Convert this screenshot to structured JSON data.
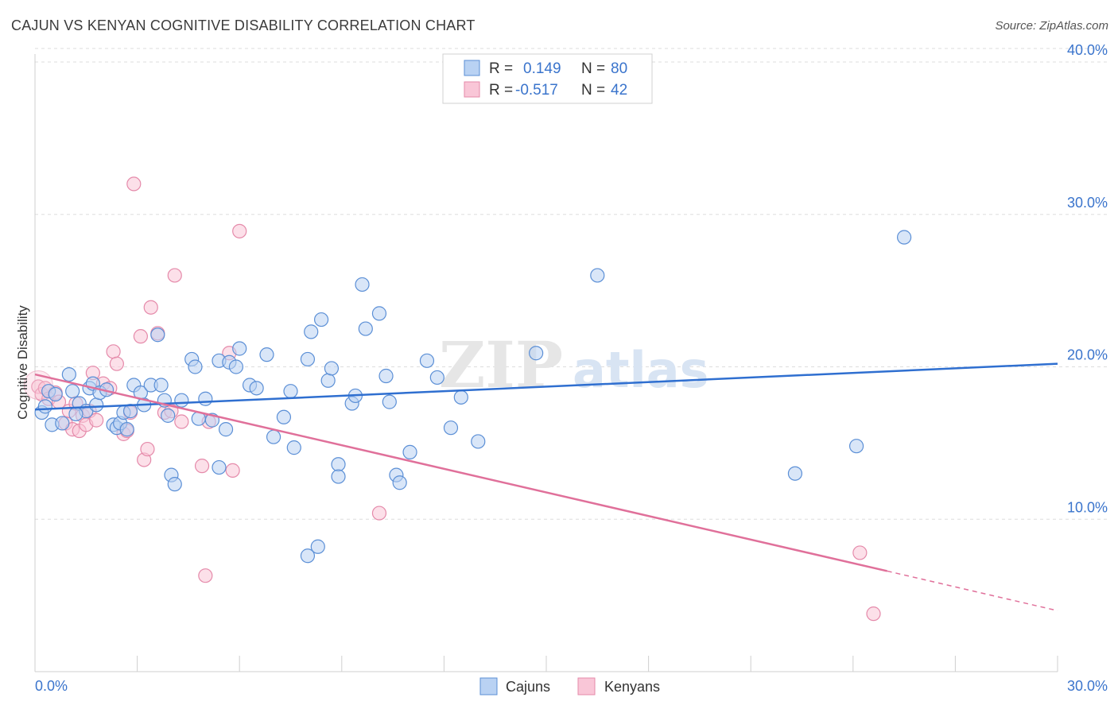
{
  "title": "CAJUN VS KENYAN COGNITIVE DISABILITY CORRELATION CHART",
  "source": "Source: ZipAtlas.com",
  "watermark": {
    "zip": "ZIP",
    "atlas": "atlas"
  },
  "colors": {
    "cajun_fill": "#b9d2f3",
    "cajun_stroke": "#5b8fd6",
    "cajun_line": "#2f6fd0",
    "kenyan_fill": "#f9c6d7",
    "kenyan_stroke": "#e58aaa",
    "kenyan_line": "#e0709a",
    "value_blue": "#3a74cc",
    "grid": "#dddddd"
  },
  "legend": {
    "rows": [
      {
        "r_label": "R =",
        "r_value": "0.149",
        "n_label": "N =",
        "n_value": "80"
      },
      {
        "r_label": "R =",
        "r_value": "-0.517",
        "n_label": "N =",
        "n_value": "42"
      }
    ]
  },
  "bottom_legend": {
    "cajuns": "Cajuns",
    "kenyans": "Kenyans"
  },
  "chart_data": {
    "type": "scatter",
    "title": "CAJUN VS KENYAN COGNITIVE DISABILITY CORRELATION CHART",
    "xlabel": "",
    "ylabel": "Cognitive Disability",
    "xlim": [
      0,
      30
    ],
    "ylim": [
      0,
      40
    ],
    "x_tick_labels": [
      "0.0%",
      "30.0%"
    ],
    "y_tick_labels": [
      "10.0%",
      "20.0%",
      "30.0%",
      "40.0%"
    ],
    "y_ticks": [
      10,
      20,
      30,
      40
    ],
    "series": [
      {
        "name": "Cajuns",
        "r": 0.149,
        "n": 80,
        "trend": {
          "x": [
            0,
            30
          ],
          "y": [
            17.2,
            20.2
          ]
        },
        "points": [
          [
            0.2,
            17.0
          ],
          [
            0.3,
            17.4
          ],
          [
            0.4,
            18.4
          ],
          [
            0.5,
            16.2
          ],
          [
            0.8,
            16.3
          ],
          [
            1.0,
            19.5
          ],
          [
            1.1,
            18.4
          ],
          [
            1.3,
            17.6
          ],
          [
            1.5,
            17.1
          ],
          [
            1.6,
            18.6
          ],
          [
            1.7,
            18.9
          ],
          [
            1.8,
            17.5
          ],
          [
            1.9,
            18.3
          ],
          [
            2.1,
            18.5
          ],
          [
            2.3,
            16.2
          ],
          [
            2.4,
            16.0
          ],
          [
            2.5,
            16.3
          ],
          [
            2.6,
            17.0
          ],
          [
            2.8,
            17.1
          ],
          [
            2.9,
            18.8
          ],
          [
            3.1,
            18.3
          ],
          [
            3.2,
            17.5
          ],
          [
            3.4,
            18.8
          ],
          [
            3.6,
            22.1
          ],
          [
            3.7,
            18.8
          ],
          [
            3.8,
            17.8
          ],
          [
            3.9,
            16.8
          ],
          [
            4.0,
            12.9
          ],
          [
            4.1,
            12.3
          ],
          [
            4.3,
            17.8
          ],
          [
            4.6,
            20.5
          ],
          [
            4.7,
            20.0
          ],
          [
            4.8,
            16.6
          ],
          [
            5.0,
            17.9
          ],
          [
            5.2,
            16.5
          ],
          [
            5.4,
            20.4
          ],
          [
            5.4,
            13.4
          ],
          [
            5.6,
            15.9
          ],
          [
            5.7,
            20.3
          ],
          [
            5.9,
            20.0
          ],
          [
            6.0,
            21.2
          ],
          [
            6.3,
            18.8
          ],
          [
            6.8,
            20.8
          ],
          [
            7.0,
            15.4
          ],
          [
            7.3,
            16.7
          ],
          [
            7.5,
            18.4
          ],
          [
            7.6,
            14.7
          ],
          [
            8.0,
            7.6
          ],
          [
            8.0,
            20.5
          ],
          [
            8.1,
            22.3
          ],
          [
            8.3,
            8.2
          ],
          [
            8.4,
            23.1
          ],
          [
            8.6,
            19.1
          ],
          [
            8.7,
            19.9
          ],
          [
            8.9,
            13.6
          ],
          [
            8.9,
            12.8
          ],
          [
            9.3,
            17.6
          ],
          [
            9.4,
            18.1
          ],
          [
            9.6,
            25.4
          ],
          [
            9.7,
            22.5
          ],
          [
            10.1,
            23.5
          ],
          [
            10.3,
            19.4
          ],
          [
            10.6,
            12.9
          ],
          [
            10.7,
            12.4
          ],
          [
            11.0,
            14.4
          ],
          [
            11.5,
            20.4
          ],
          [
            11.8,
            19.3
          ],
          [
            12.2,
            16.0
          ],
          [
            12.5,
            18.0
          ],
          [
            13.0,
            15.1
          ],
          [
            14.7,
            20.9
          ],
          [
            16.5,
            26.0
          ],
          [
            22.3,
            13.0
          ],
          [
            24.1,
            14.8
          ],
          [
            25.5,
            28.5
          ],
          [
            0.6,
            18.2
          ],
          [
            1.2,
            16.9
          ],
          [
            2.7,
            15.9
          ],
          [
            6.5,
            18.6
          ],
          [
            10.4,
            17.7
          ]
        ]
      },
      {
        "name": "Kenyans",
        "r": -0.517,
        "n": 42,
        "trend": {
          "x": [
            0,
            25
          ],
          "y": [
            19.5,
            6.6
          ]
        },
        "trend_dashed": {
          "x": [
            25,
            30
          ],
          "y": [
            6.6,
            4.0
          ]
        },
        "points": [
          [
            0.1,
            18.7
          ],
          [
            0.2,
            18.2
          ],
          [
            0.3,
            18.6
          ],
          [
            0.4,
            17.9
          ],
          [
            0.6,
            18.3
          ],
          [
            0.7,
            17.7
          ],
          [
            0.9,
            16.3
          ],
          [
            1.0,
            17.1
          ],
          [
            1.1,
            15.9
          ],
          [
            1.3,
            15.8
          ],
          [
            1.4,
            16.8
          ],
          [
            1.5,
            16.2
          ],
          [
            1.6,
            17.1
          ],
          [
            1.7,
            19.6
          ],
          [
            1.8,
            16.5
          ],
          [
            2.0,
            18.9
          ],
          [
            2.2,
            18.6
          ],
          [
            2.3,
            21.0
          ],
          [
            2.4,
            20.2
          ],
          [
            2.6,
            15.6
          ],
          [
            2.7,
            15.8
          ],
          [
            2.8,
            17.0
          ],
          [
            2.9,
            32.0
          ],
          [
            3.1,
            22.0
          ],
          [
            3.2,
            13.9
          ],
          [
            3.3,
            14.6
          ],
          [
            3.4,
            23.9
          ],
          [
            3.6,
            22.2
          ],
          [
            3.8,
            17.0
          ],
          [
            4.0,
            17.1
          ],
          [
            4.1,
            26.0
          ],
          [
            4.3,
            16.4
          ],
          [
            4.9,
            13.5
          ],
          [
            5.0,
            6.3
          ],
          [
            5.1,
            16.4
          ],
          [
            5.7,
            20.9
          ],
          [
            5.8,
            13.2
          ],
          [
            6.0,
            28.9
          ],
          [
            10.1,
            10.4
          ],
          [
            24.2,
            7.8
          ],
          [
            24.6,
            3.8
          ],
          [
            1.2,
            17.6
          ]
        ]
      }
    ]
  }
}
